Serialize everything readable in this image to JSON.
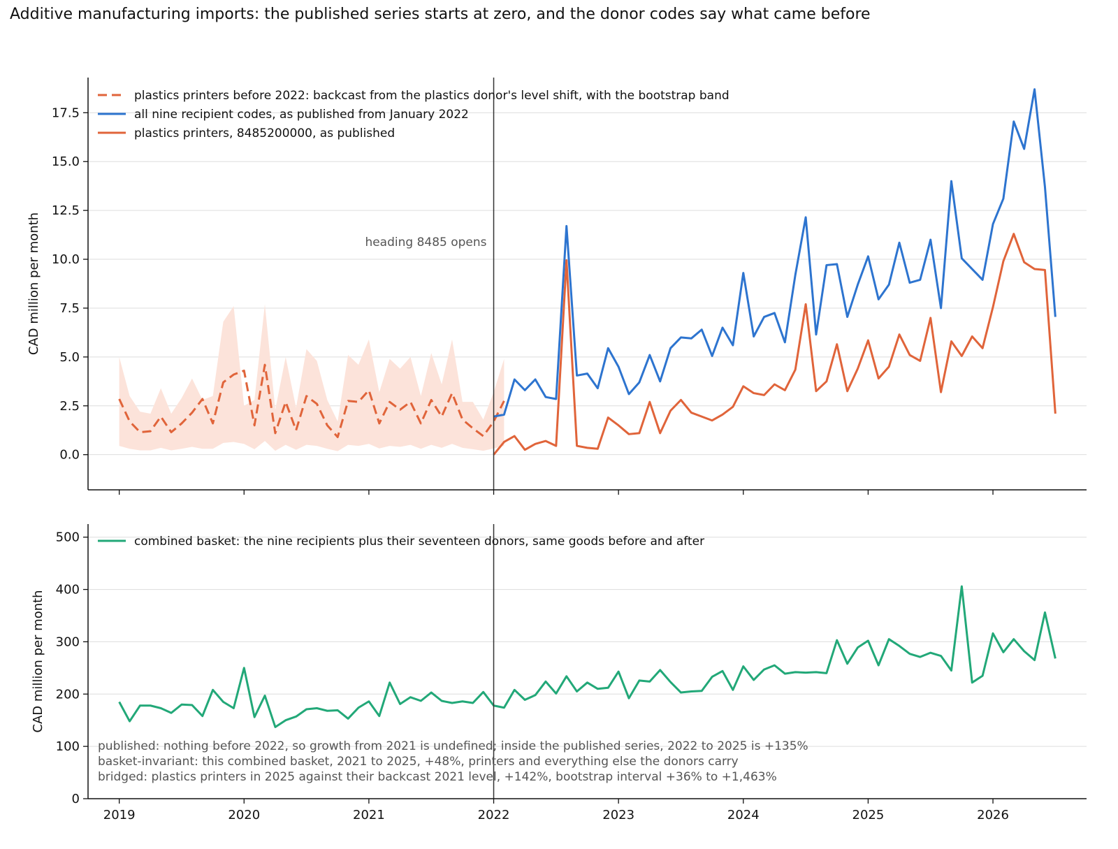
{
  "title": "Additive manufacturing imports: the published series starts at zero, and the donor codes say what came before",
  "colors": {
    "orange": "#E0643A",
    "blue": "#2D74CF",
    "green": "#22A878",
    "band": "#FCE3DA",
    "grid": "#DDDDDD",
    "vline": "#333333",
    "annot": "#555555"
  },
  "chart_data": [
    {
      "type": "line",
      "ylabel": "CAD million per month",
      "ylim": [
        -1.8,
        19.3
      ],
      "yticks": [
        0.0,
        2.5,
        5.0,
        7.5,
        10.0,
        12.5,
        15.0,
        17.5
      ],
      "ytick_labels": [
        "0.0",
        "2.5",
        "5.0",
        "7.5",
        "10.0",
        "12.5",
        "15.0",
        "17.5"
      ],
      "xlim": [
        2018.75,
        2026.75
      ],
      "grid": "horizontal",
      "legend_position": "top-left",
      "vline": {
        "x": 2022.0,
        "label": "heading 8485 opens"
      },
      "series": [
        {
          "name": "plastics printers before 2022: backcast from the plastics donor's level shift, with the bootstrap band",
          "style": "dashed",
          "color": "orange",
          "x_start": 2019.0,
          "x_step": 0.0833333,
          "values": [
            2.85,
            1.7,
            1.15,
            1.2,
            1.95,
            1.15,
            1.6,
            2.15,
            2.85,
            1.6,
            3.7,
            4.1,
            4.3,
            1.5,
            4.6,
            1.1,
            2.7,
            1.25,
            3.0,
            2.6,
            1.5,
            0.9,
            2.75,
            2.7,
            3.3,
            1.6,
            2.7,
            2.3,
            2.7,
            1.6,
            2.8,
            1.95,
            3.15,
            1.8,
            1.35,
            0.95,
            1.7,
            2.75
          ],
          "band_upper": [
            5.0,
            3.0,
            2.2,
            2.1,
            3.4,
            2.1,
            2.9,
            3.9,
            2.8,
            3.0,
            6.8,
            7.6,
            2.5,
            2.8,
            7.7,
            2.3,
            5.0,
            2.4,
            5.4,
            4.8,
            2.8,
            1.7,
            5.1,
            4.6,
            5.9,
            3.2,
            4.9,
            4.4,
            5.0,
            3.0,
            5.2,
            3.6,
            5.9,
            2.7,
            2.7,
            1.8,
            3.2,
            4.9
          ],
          "band_lower": [
            0.45,
            0.3,
            0.22,
            0.22,
            0.35,
            0.22,
            0.3,
            0.4,
            0.3,
            0.3,
            0.6,
            0.65,
            0.55,
            0.28,
            0.7,
            0.2,
            0.5,
            0.25,
            0.5,
            0.45,
            0.3,
            0.18,
            0.5,
            0.45,
            0.55,
            0.32,
            0.45,
            0.4,
            0.5,
            0.3,
            0.5,
            0.35,
            0.55,
            0.35,
            0.28,
            0.2,
            0.32,
            0.45
          ]
        },
        {
          "name": "all nine recipient codes, as published from January 2022",
          "style": "solid",
          "color": "blue",
          "x_start": 2022.0,
          "x_step": 0.0833333,
          "values": [
            1.95,
            2.05,
            3.85,
            3.3,
            3.85,
            2.95,
            2.85,
            11.7,
            4.05,
            4.15,
            3.4,
            5.45,
            4.5,
            3.1,
            3.7,
            5.1,
            3.75,
            5.45,
            6.0,
            5.95,
            6.4,
            5.05,
            6.5,
            5.6,
            9.3,
            6.05,
            7.05,
            7.25,
            5.75,
            9.2,
            12.15,
            6.15,
            9.7,
            9.75,
            7.05,
            8.7,
            10.15,
            7.95,
            8.7,
            10.85,
            8.8,
            8.95,
            11.0,
            7.5,
            14.0,
            10.05,
            9.5,
            8.95,
            11.8,
            13.1,
            17.05,
            15.65,
            18.7,
            13.7,
            7.05
          ]
        },
        {
          "name": "plastics printers, 8485200000, as published",
          "style": "solid",
          "color": "orange",
          "x_start": 2022.0,
          "x_step": 0.0833333,
          "values": [
            0.0,
            0.65,
            0.95,
            0.25,
            0.55,
            0.7,
            0.45,
            9.95,
            0.45,
            0.35,
            0.3,
            1.9,
            1.5,
            1.05,
            1.1,
            2.7,
            1.1,
            2.25,
            2.8,
            2.15,
            1.95,
            1.75,
            2.05,
            2.45,
            3.5,
            3.15,
            3.05,
            3.6,
            3.3,
            4.35,
            7.7,
            3.25,
            3.75,
            5.65,
            3.25,
            4.4,
            5.85,
            3.9,
            4.5,
            6.15,
            5.1,
            4.8,
            7.0,
            3.2,
            5.8,
            5.05,
            6.05,
            5.45,
            7.55,
            9.9,
            11.3,
            9.85,
            9.5,
            9.45,
            2.1
          ]
        }
      ],
      "legend": [
        "plastics printers before 2022: backcast from the plastics donor's level shift, with the bootstrap band",
        "all nine recipient codes, as published from January 2022",
        "plastics printers, 8485200000, as published"
      ]
    },
    {
      "type": "line",
      "ylabel": "CAD million per month",
      "ylim": [
        0,
        525
      ],
      "yticks": [
        0,
        100,
        200,
        300,
        400,
        500
      ],
      "ytick_labels": [
        "0",
        "100",
        "200",
        "300",
        "400",
        "500"
      ],
      "xlim": [
        2018.75,
        2026.75
      ],
      "xticks": [
        2019,
        2020,
        2021,
        2022,
        2023,
        2024,
        2025,
        2026
      ],
      "xtick_labels": [
        "2019",
        "2020",
        "2021",
        "2022",
        "2023",
        "2024",
        "2025",
        "2026"
      ],
      "grid": "horizontal",
      "legend_position": "top-left",
      "vline": {
        "x": 2022.0
      },
      "series": [
        {
          "name": "combined basket: the nine recipients plus their seventeen donors, same goods before and after",
          "style": "solid",
          "color": "green",
          "x_start": 2019.0,
          "x_step": 0.0833333,
          "values": [
            185,
            148,
            178,
            178,
            173,
            164,
            180,
            179,
            158,
            208,
            185,
            173,
            250,
            156,
            197,
            137,
            150,
            157,
            171,
            173,
            168,
            169,
            153,
            174,
            186,
            158,
            222,
            181,
            194,
            187,
            203,
            187,
            183,
            186,
            183,
            204,
            178,
            174,
            208,
            189,
            198,
            224,
            201,
            234,
            205,
            222,
            210,
            212,
            243,
            192,
            226,
            224,
            246,
            223,
            203,
            205,
            206,
            233,
            244,
            208,
            253,
            227,
            247,
            255,
            239,
            242,
            241,
            242,
            240,
            303,
            258,
            289,
            302,
            255,
            305,
            292,
            277,
            271,
            279,
            273,
            245,
            406,
            222,
            235,
            316,
            280,
            305,
            282,
            265,
            356,
            268
          ]
        }
      ],
      "legend": [
        "combined basket: the nine recipients plus their seventeen donors, same goods before and after"
      ],
      "annotations": [
        "published: nothing before 2022, so growth from 2021 is undefined; inside the published series, 2022 to 2025 is +135%",
        "basket-invariant: this combined basket, 2021 to 2025, +48%, printers and everything else the donors carry",
        "bridged: plastics printers in 2025 against their backcast 2021 level, +142%, bootstrap interval +36% to +1,463%"
      ]
    }
  ]
}
